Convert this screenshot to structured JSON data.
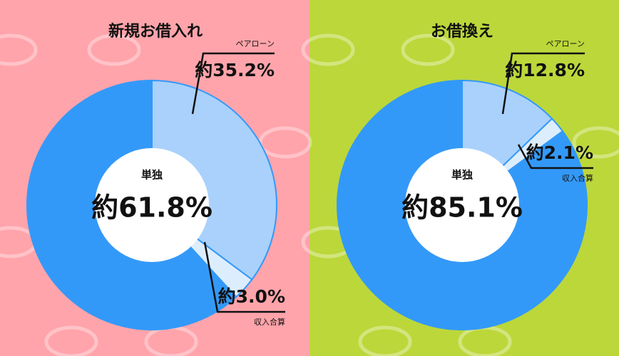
{
  "chart_data": [
    {
      "type": "donut",
      "title": "新規お借入れ",
      "categories": [
        "ペアローン",
        "収入合算",
        "単独"
      ],
      "values": [
        35.2,
        3.0,
        61.8
      ],
      "value_labels": [
        "約35.2%",
        "約3.0%",
        "約61.8%"
      ],
      "colors": [
        "#a9d1fb",
        "#dcedfd",
        "#3399f8"
      ]
    },
    {
      "type": "donut",
      "title": "お借換え",
      "categories": [
        "ペアローン",
        "収入合算",
        "単独"
      ],
      "values": [
        12.8,
        2.1,
        85.1
      ],
      "value_labels": [
        "約12.8%",
        "約2.1%",
        "約85.1%"
      ],
      "colors": [
        "#a9d1fb",
        "#dcedfd",
        "#3399f8"
      ]
    }
  ]
}
